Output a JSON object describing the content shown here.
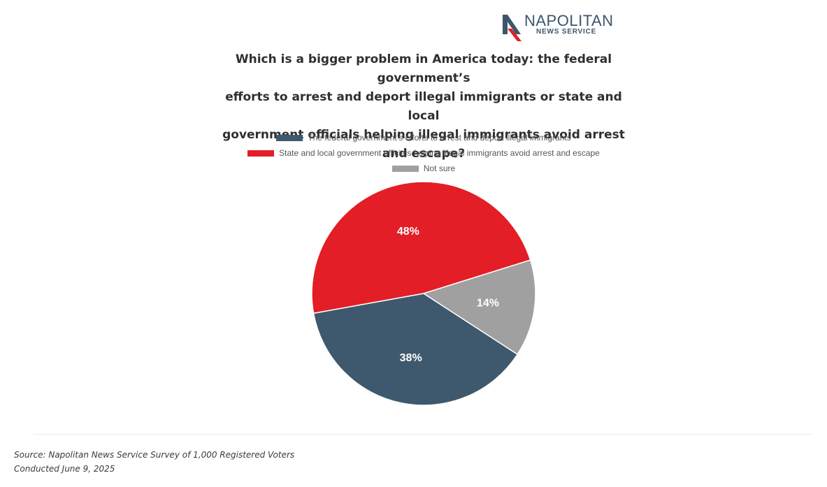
{
  "logo": {
    "name": "NAPOLITAN",
    "subtitle": "NEWS SERVICE"
  },
  "chart_data": {
    "type": "pie",
    "title": "Which is a bigger problem in America today: the federal government’s efforts to arrest and deport illegal immigrants or state and local government officials helping illegal immigrants avoid arrest and escape?",
    "title_lines": [
      "Which is a bigger problem in America today: the federal government’s",
      "efforts to arrest and deport illegal immigrants or state and local",
      "government officials helping illegal immigrants avoid arrest and escape?"
    ],
    "legend_position": "top",
    "slices": [
      {
        "label": "The federal government’s efforts to arrest and deport illegal immigrants",
        "value": 38,
        "value_label": "38%",
        "color": "#3e596d"
      },
      {
        "label": "State and local government officials helping illegal immigrants avoid arrest and escape",
        "value": 48,
        "value_label": "48%",
        "color": "#e31e26"
      },
      {
        "label": "Not sure",
        "value": 14,
        "value_label": "14%",
        "color": "#a0a0a0"
      }
    ]
  },
  "footer": {
    "source": "Source: Napolitan News Service Survey of 1,000 Registered Voters",
    "conducted": "Conducted June 9, 2025"
  },
  "colors": {
    "brand": "#3d566a",
    "accent": "#e31e26"
  }
}
